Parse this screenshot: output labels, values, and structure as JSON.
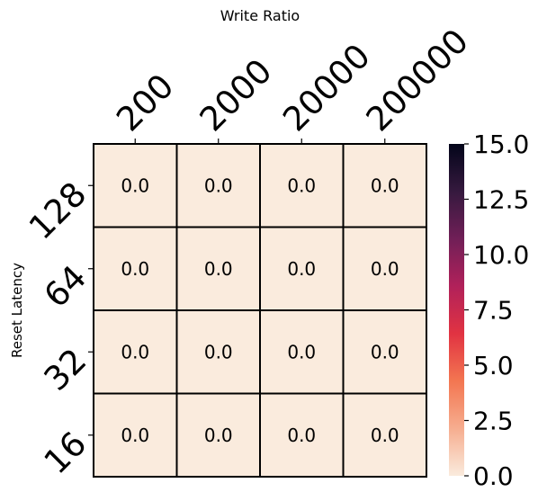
{
  "chart_data": {
    "type": "heatmap",
    "xlabel": "Write Ratio",
    "ylabel": "Reset Latency",
    "x_categories": [
      "200",
      "2000",
      "20000",
      "200000"
    ],
    "y_categories": [
      "128",
      "64",
      "32",
      "16"
    ],
    "values": [
      [
        0.0,
        0.0,
        0.0,
        0.0
      ],
      [
        0.0,
        0.0,
        0.0,
        0.0
      ],
      [
        0.0,
        0.0,
        0.0,
        0.0
      ],
      [
        0.0,
        0.0,
        0.0,
        0.0
      ]
    ],
    "value_labels": [
      [
        "0.0",
        "0.0",
        "0.0",
        "0.0"
      ],
      [
        "0.0",
        "0.0",
        "0.0",
        "0.0"
      ],
      [
        "0.0",
        "0.0",
        "0.0",
        "0.0"
      ],
      [
        "0.0",
        "0.0",
        "0.0",
        "0.0"
      ]
    ],
    "colorbar": {
      "min": 0.0,
      "max": 15.0,
      "ticks": [
        "0.0",
        "2.5",
        "5.0",
        "7.5",
        "10.0",
        "12.5",
        "15.0"
      ],
      "colormap": "rocket_r",
      "colors": [
        "#faebdd",
        "#f6ad8f",
        "#f37651",
        "#e13342",
        "#b1215a",
        "#701f57",
        "#35193e",
        "#03051a"
      ]
    },
    "x_axis_position": "top",
    "cell_border_color": "#000000"
  }
}
